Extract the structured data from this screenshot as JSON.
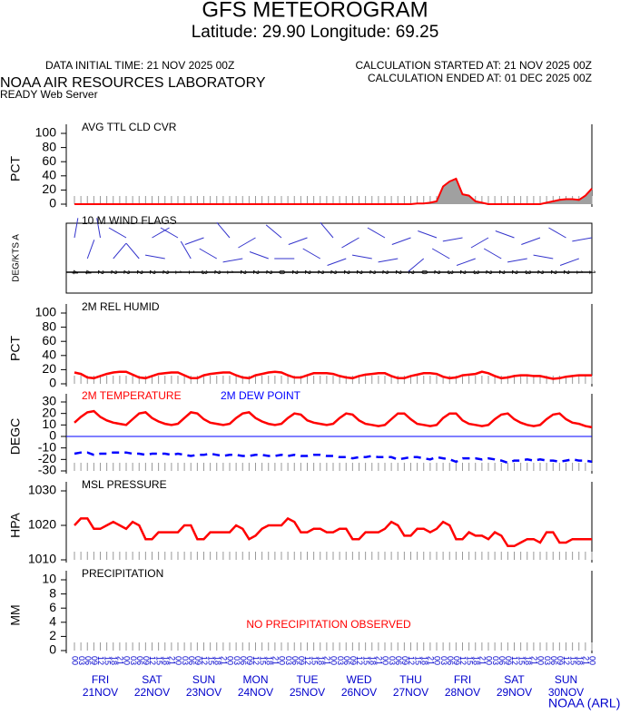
{
  "header": {
    "title": "GFS METEOROGRAM",
    "subtitle": "Latitude: 29.90 Longitude:  69.25",
    "init_time": "DATA INITIAL TIME: 21 NOV 2025 00Z",
    "started": "CALCULATION STARTED AT: 21 NOV 2025 00Z",
    "ended": "CALCULATION ENDED AT: 01 DEC 2025 00Z",
    "lab": "NOAA AIR RESOURCES LABORATORY",
    "server": "READY Web Server",
    "footer": "NOAA (ARL)"
  },
  "time": {
    "hours": [
      "00",
      "03",
      "06",
      "09",
      "12",
      "15",
      "18",
      "21",
      "00",
      "03",
      "06",
      "09",
      "12",
      "15",
      "18",
      "21",
      "00",
      "03",
      "06",
      "09",
      "12",
      "15",
      "18",
      "21",
      "00",
      "03",
      "06",
      "09",
      "12",
      "15",
      "18",
      "21",
      "00",
      "03",
      "06",
      "09",
      "12",
      "15",
      "18",
      "21",
      "00",
      "03",
      "06",
      "09",
      "12",
      "15",
      "18",
      "21",
      "00",
      "03",
      "06",
      "09",
      "12",
      "15",
      "18",
      "21",
      "00",
      "03",
      "06",
      "09",
      "12",
      "15",
      "18",
      "21",
      "00",
      "03",
      "06",
      "09",
      "12",
      "15",
      "18",
      "21",
      "00",
      "03",
      "06",
      "09",
      "12",
      "15",
      "18",
      "21",
      "00"
    ],
    "days": [
      {
        "weekday": "FRI",
        "date": "21NOV"
      },
      {
        "weekday": "SAT",
        "date": "22NOV"
      },
      {
        "weekday": "SUN",
        "date": "23NOV"
      },
      {
        "weekday": "MON",
        "date": "24NOV"
      },
      {
        "weekday": "TUE",
        "date": "25NOV"
      },
      {
        "weekday": "WED",
        "date": "26NOV"
      },
      {
        "weekday": "THU",
        "date": "27NOV"
      },
      {
        "weekday": "FRI",
        "date": "28NOV"
      },
      {
        "weekday": "SAT",
        "date": "29NOV"
      },
      {
        "weekday": "SUN",
        "date": "30NOV"
      }
    ]
  },
  "chart_data": [
    {
      "type": "area",
      "title": "AVG TTL CLD CVR",
      "ylabel": "PCT",
      "ylim": [
        0,
        100
      ],
      "yticks": [
        0,
        20,
        40,
        60,
        80,
        100
      ],
      "color": "#a0a0a0",
      "line_color": "#ff0000",
      "values": [
        0,
        0,
        0,
        0,
        0,
        0,
        0,
        0,
        0,
        0,
        0,
        0,
        0,
        0,
        0,
        0,
        0,
        0,
        0,
        0,
        0,
        0,
        0,
        0,
        0,
        0,
        0,
        0,
        0,
        0,
        0,
        0,
        0,
        0,
        0,
        0,
        0,
        0,
        0,
        0,
        0,
        0,
        0,
        0,
        0,
        0,
        0,
        0,
        0,
        0,
        0,
        0,
        0,
        1,
        1,
        2,
        4,
        25,
        32,
        36,
        14,
        12,
        4,
        2,
        0,
        0,
        0,
        0,
        0,
        0,
        0,
        0,
        0,
        2,
        4,
        6,
        7,
        7,
        6,
        12,
        22
      ]
    },
    {
      "type": "wind",
      "title": "10 M  WIND FLAGS",
      "ylabel": "DEG/KTS  A",
      "color": "#3333cc",
      "directions": [
        10,
        20,
        350,
        40,
        300,
        320,
        60,
        280,
        300,
        330,
        250,
        300,
        320,
        260,
        240,
        290,
        310,
        270,
        250,
        300,
        320,
        250,
        240,
        280,
        300,
        260,
        250,
        230,
        290,
        300,
        260,
        250,
        240,
        300,
        290,
        260,
        250,
        280,
        300,
        250,
        260
      ],
      "speeds": [
        4,
        4,
        2,
        2,
        2,
        2,
        2,
        2,
        1,
        1,
        3,
        2,
        1,
        2,
        2,
        2,
        0,
        2,
        2,
        2,
        2,
        2,
        2,
        2,
        2,
        2,
        2,
        0,
        2,
        3,
        2,
        3,
        2,
        2,
        2,
        3,
        2,
        2,
        2,
        1,
        1
      ]
    },
    {
      "type": "line",
      "title": "2M REL HUMID",
      "ylabel": "PCT",
      "ylim": [
        0,
        100
      ],
      "yticks": [
        0,
        20,
        40,
        60,
        80,
        100
      ],
      "series": [
        {
          "color": "#ff0000",
          "values": [
            16,
            14,
            9,
            8,
            11,
            14,
            16,
            17,
            17,
            13,
            9,
            8,
            11,
            14,
            15,
            16,
            16,
            12,
            8,
            8,
            12,
            14,
            15,
            16,
            16,
            12,
            9,
            8,
            12,
            14,
            16,
            17,
            16,
            12,
            9,
            9,
            12,
            15,
            15,
            15,
            14,
            11,
            9,
            8,
            11,
            13,
            14,
            15,
            15,
            11,
            8,
            8,
            11,
            13,
            15,
            15,
            14,
            10,
            8,
            9,
            12,
            13,
            14,
            17,
            15,
            11,
            8,
            9,
            11,
            12,
            12,
            11,
            11,
            9,
            7,
            8,
            10,
            11,
            12,
            12,
            12
          ]
        }
      ]
    },
    {
      "type": "line",
      "ylabel": "DEGC",
      "ylim": [
        -30,
        30
      ],
      "yticks": [
        -30,
        -20,
        -10,
        0,
        10,
        20,
        30
      ],
      "zero_line": "#0000ff",
      "series": [
        {
          "name": "2M TEMPERATURE",
          "color": "#ff0000",
          "values": [
            12,
            17,
            21,
            22,
            17,
            14,
            12,
            11,
            10,
            15,
            20,
            21,
            16,
            13,
            11,
            10,
            11,
            16,
            21,
            20,
            15,
            12,
            11,
            10,
            11,
            16,
            20,
            21,
            16,
            13,
            11,
            10,
            11,
            16,
            20,
            19,
            14,
            12,
            11,
            10,
            11,
            16,
            20,
            19,
            14,
            11,
            10,
            9,
            10,
            15,
            20,
            20,
            15,
            11,
            10,
            9,
            10,
            16,
            20,
            20,
            14,
            11,
            10,
            9,
            10,
            15,
            19,
            20,
            15,
            12,
            10,
            9,
            10,
            15,
            19,
            20,
            15,
            12,
            11,
            9,
            8
          ]
        },
        {
          "name": "2M  DEW POINT",
          "color": "#0000ff",
          "dashed": true,
          "values": [
            -15,
            -14,
            -14,
            -16,
            -15,
            -15,
            -14,
            -14,
            -14,
            -15,
            -15,
            -16,
            -15,
            -15,
            -15,
            -16,
            -15,
            -16,
            -17,
            -16,
            -16,
            -15,
            -16,
            -17,
            -16,
            -16,
            -17,
            -17,
            -16,
            -16,
            -17,
            -17,
            -16,
            -17,
            -16,
            -17,
            -17,
            -16,
            -16,
            -17,
            -17,
            -18,
            -18,
            -19,
            -18,
            -18,
            -17,
            -18,
            -18,
            -18,
            -20,
            -19,
            -18,
            -18,
            -19,
            -20,
            -18,
            -19,
            -20,
            -22,
            -19,
            -19,
            -19,
            -20,
            -19,
            -20,
            -21,
            -23,
            -21,
            -21,
            -20,
            -21,
            -20,
            -21,
            -21,
            -22,
            -21,
            -20,
            -21,
            -21,
            -22
          ]
        }
      ]
    },
    {
      "type": "line",
      "title": "MSL PRESSURE",
      "ylabel": "HPA",
      "ylim": [
        1010,
        1030
      ],
      "yticks": [
        1010,
        1020,
        1030
      ],
      "series": [
        {
          "color": "#ff0000",
          "values": [
            1020,
            1022,
            1022,
            1019,
            1019,
            1020,
            1021,
            1020,
            1019,
            1021,
            1020,
            1016,
            1016,
            1018,
            1018,
            1018,
            1018,
            1020,
            1020,
            1016,
            1016,
            1018,
            1018,
            1018,
            1018,
            1020,
            1019,
            1016,
            1017,
            1019,
            1020,
            1020,
            1020,
            1022,
            1021,
            1018,
            1018,
            1019,
            1019,
            1018,
            1018,
            1019,
            1019,
            1016,
            1016,
            1018,
            1018,
            1018,
            1019,
            1021,
            1020,
            1017,
            1017,
            1019,
            1019,
            1018,
            1019,
            1021,
            1020,
            1016,
            1016,
            1018,
            1017,
            1017,
            1016,
            1018,
            1017,
            1014,
            1014,
            1015,
            1016,
            1016,
            1015,
            1018,
            1018,
            1015,
            1015,
            1016,
            1016,
            1016,
            1016
          ]
        }
      ]
    },
    {
      "type": "precip",
      "title": "PRECIPITATION",
      "ylabel": "MM",
      "ylim": [
        0,
        10
      ],
      "yticks": [
        0,
        2,
        4,
        6,
        8,
        10
      ],
      "note": "NO PRECIPITATION OBSERVED",
      "note_color": "#ff0000"
    }
  ]
}
